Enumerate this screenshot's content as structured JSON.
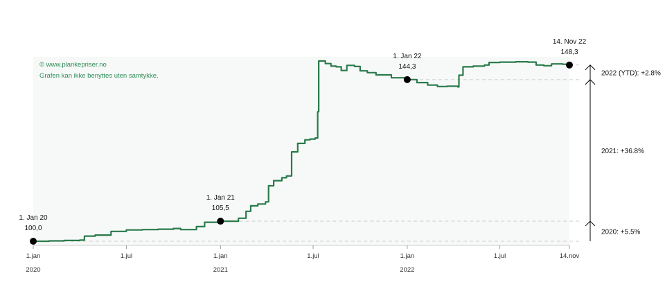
{
  "chart_data": {
    "type": "line",
    "credit": {
      "line1": "© www.plankepriser.no",
      "line2": "Grafen kan ikke benyttes uten samtykke."
    },
    "x_ticks": [
      {
        "date": "2020-01-01",
        "label": "1.jan",
        "year": "2020"
      },
      {
        "date": "2020-07-01",
        "label": "1.jul",
        "year": ""
      },
      {
        "date": "2021-01-01",
        "label": "1.jan",
        "year": "2021"
      },
      {
        "date": "2021-07-01",
        "label": "1.jul",
        "year": ""
      },
      {
        "date": "2022-01-01",
        "label": "1.jan",
        "year": "2022"
      },
      {
        "date": "2022-07-01",
        "label": "1.jul",
        "year": ""
      },
      {
        "date": "2022-11-14",
        "label": "14.nov",
        "year": ""
      }
    ],
    "x_range": [
      "2020-01-01",
      "2022-12-01"
    ],
    "y_range": [
      98,
      150.5
    ],
    "grid": false,
    "series": [
      {
        "color": "#2a7a4b",
        "points": [
          [
            "2020-01-01",
            100.0
          ],
          [
            "2020-02-01",
            100.1
          ],
          [
            "2020-03-01",
            100.2
          ],
          [
            "2020-04-01",
            100.3
          ],
          [
            "2020-04-10",
            101.4
          ],
          [
            "2020-05-01",
            101.7
          ],
          [
            "2020-06-01",
            102.7
          ],
          [
            "2020-07-01",
            103.1
          ],
          [
            "2020-08-01",
            103.2
          ],
          [
            "2020-09-01",
            103.3
          ],
          [
            "2020-10-01",
            103.5
          ],
          [
            "2020-10-15",
            103.2
          ],
          [
            "2020-11-15",
            104.0
          ],
          [
            "2020-12-01",
            105.2
          ],
          [
            "2021-01-01",
            105.5
          ],
          [
            "2021-01-20",
            105.5
          ],
          [
            "2021-02-05",
            106.3
          ],
          [
            "2021-02-20",
            108.2
          ],
          [
            "2021-03-01",
            109.7
          ],
          [
            "2021-03-15",
            110.2
          ],
          [
            "2021-03-30",
            110.8
          ],
          [
            "2021-04-05",
            115.2
          ],
          [
            "2021-04-15",
            116.6
          ],
          [
            "2021-05-01",
            117.4
          ],
          [
            "2021-05-10",
            117.9
          ],
          [
            "2021-05-20",
            124.5
          ],
          [
            "2021-06-01",
            126.8
          ],
          [
            "2021-06-15",
            127.8
          ],
          [
            "2021-06-25",
            128.0
          ],
          [
            "2021-07-05",
            128.3
          ],
          [
            "2021-07-10",
            135.5
          ],
          [
            "2021-07-12",
            149.4
          ],
          [
            "2021-07-25",
            148.7
          ],
          [
            "2021-08-05",
            148.0
          ],
          [
            "2021-08-15",
            147.8
          ],
          [
            "2021-08-25",
            146.8
          ],
          [
            "2021-09-05",
            148.2
          ],
          [
            "2021-09-20",
            147.9
          ],
          [
            "2021-10-01",
            146.7
          ],
          [
            "2021-10-15",
            146.2
          ],
          [
            "2021-11-01",
            145.6
          ],
          [
            "2021-12-01",
            144.8
          ],
          [
            "2022-01-01",
            144.3
          ],
          [
            "2022-01-20",
            143.5
          ],
          [
            "2022-02-10",
            142.8
          ],
          [
            "2022-03-01",
            142.4
          ],
          [
            "2022-03-20",
            142.5
          ],
          [
            "2022-04-10",
            142.3
          ],
          [
            "2022-04-12",
            145.5
          ],
          [
            "2022-04-20",
            147.8
          ],
          [
            "2022-05-10",
            148.0
          ],
          [
            "2022-06-01",
            148.3
          ],
          [
            "2022-06-10",
            149.0
          ],
          [
            "2022-07-01",
            149.1
          ],
          [
            "2022-08-01",
            149.2
          ],
          [
            "2022-08-25",
            149.1
          ],
          [
            "2022-09-10",
            148.3
          ],
          [
            "2022-09-25",
            148.1
          ],
          [
            "2022-10-10",
            148.6
          ],
          [
            "2022-11-01",
            148.5
          ],
          [
            "2022-11-14",
            148.3
          ]
        ]
      }
    ],
    "markers": [
      {
        "date": "2020-01-01",
        "value": 100.0,
        "label": "1. Jan 20",
        "value_label": "100,0"
      },
      {
        "date": "2021-01-01",
        "value": 105.5,
        "label": "1. Jan 21",
        "value_label": "105,5"
      },
      {
        "date": "2022-01-01",
        "value": 144.3,
        "label": "1. Jan 22",
        "value_label": "144,3"
      },
      {
        "date": "2022-11-14",
        "value": 148.3,
        "label": "14. Nov 22",
        "value_label": "148,3"
      }
    ],
    "changes": [
      {
        "from": 100.0,
        "to": 105.5,
        "label": "2020: +5.5%"
      },
      {
        "from": 105.5,
        "to": 144.3,
        "label": "2021: +36.8%"
      },
      {
        "from": 144.3,
        "to": 148.3,
        "label": "2022 (YTD): +2.8%"
      }
    ]
  }
}
